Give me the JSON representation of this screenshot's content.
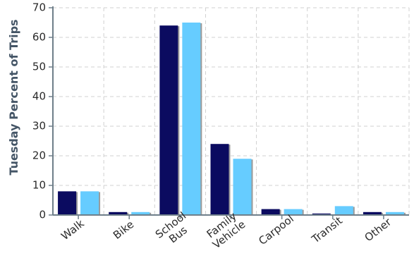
{
  "chart_data": {
    "type": "bar",
    "title": "",
    "xlabel": "",
    "ylabel": "Tuesday Percent of Trips",
    "ylim": [
      0,
      70
    ],
    "yticks": [
      0,
      10,
      20,
      30,
      40,
      50,
      60,
      70
    ],
    "grid": true,
    "categories": [
      [
        "Walk"
      ],
      [
        "Bike"
      ],
      [
        "School",
        "Bus"
      ],
      [
        "Family",
        "Vehicle"
      ],
      [
        "Carpool"
      ],
      [
        "Transit"
      ],
      [
        "Other"
      ]
    ],
    "series": [
      {
        "color": "#0b0b60",
        "values": [
          8,
          1,
          64,
          24,
          2,
          0.5,
          1
        ]
      },
      {
        "color": "#66ccff",
        "values": [
          8,
          1,
          65,
          19,
          2,
          3,
          1
        ]
      }
    ]
  }
}
